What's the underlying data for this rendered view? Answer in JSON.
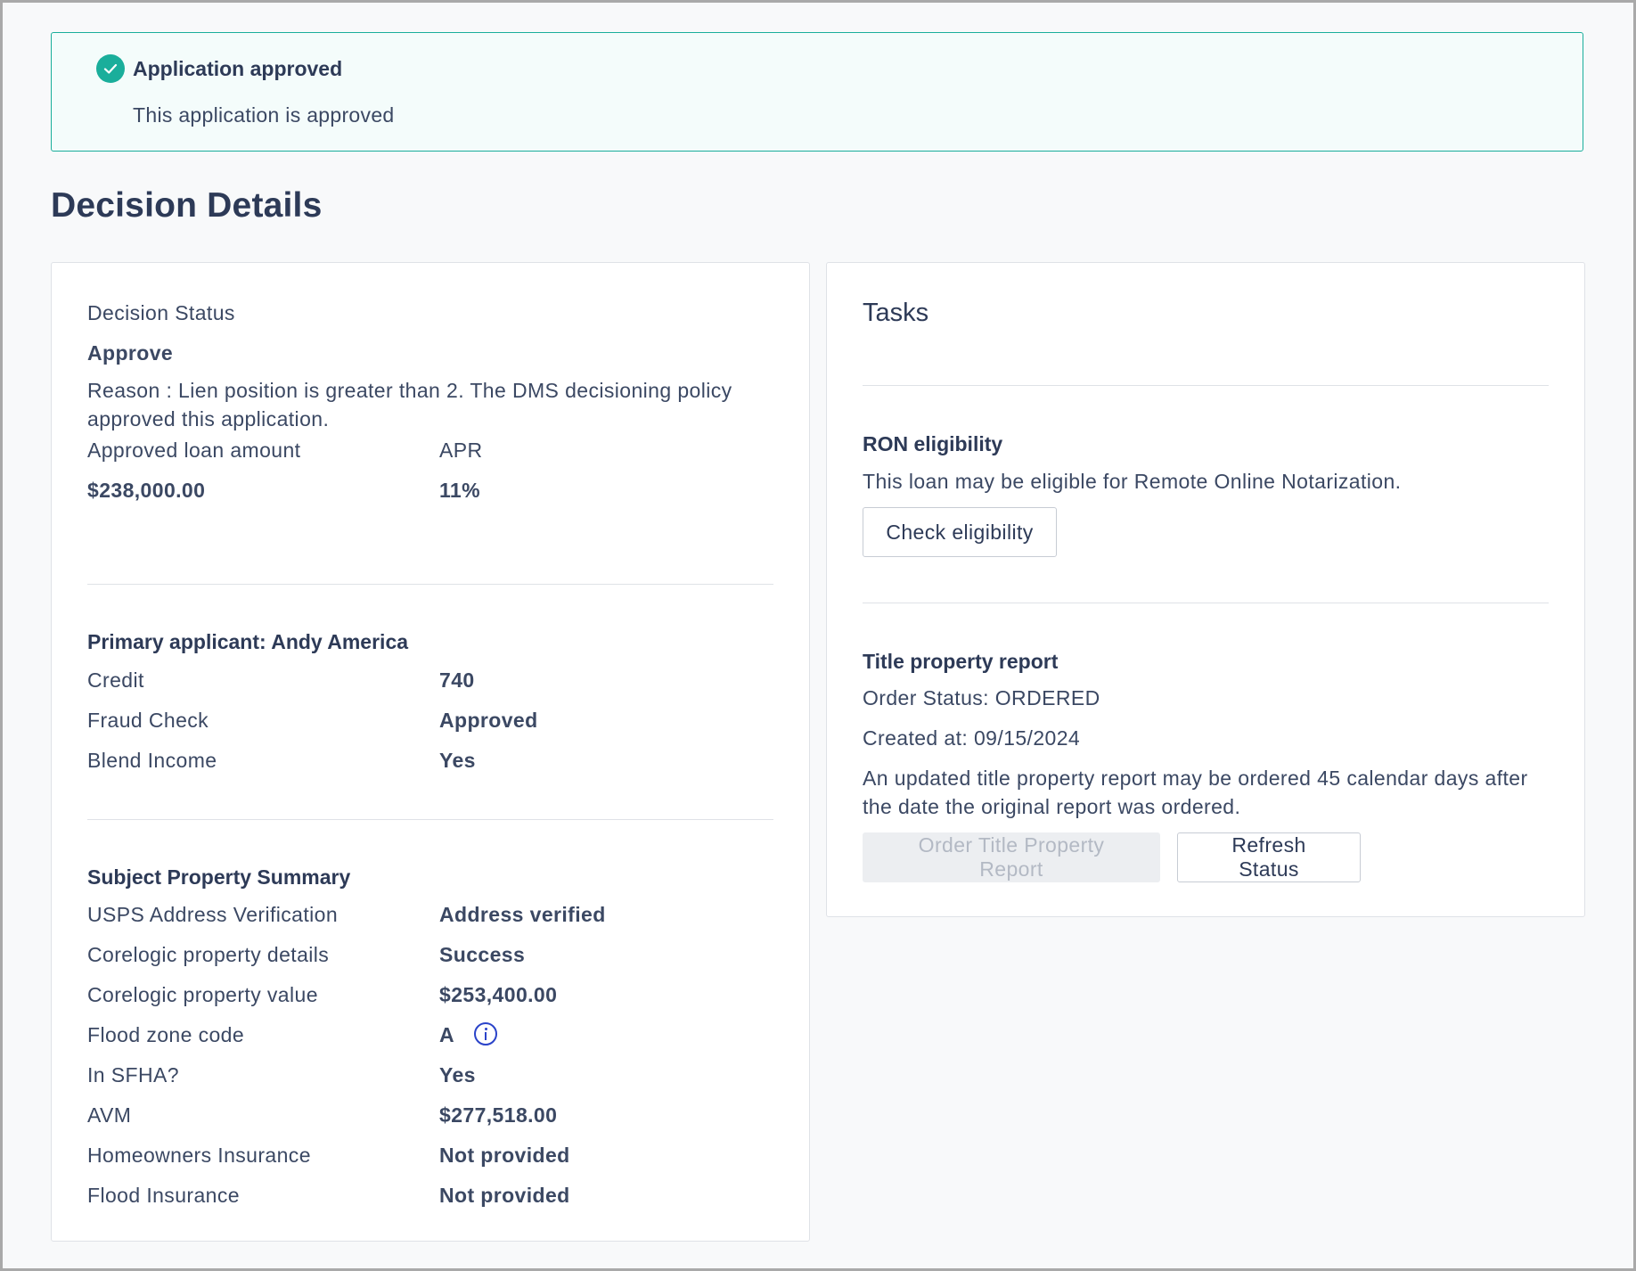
{
  "banner": {
    "title": "Application approved",
    "message": "This application is approved",
    "accent_color": "#1aae9b",
    "icon": "check-circle-icon"
  },
  "page_title": "Decision Details",
  "decision": {
    "status_label": "Decision Status",
    "status_value": "Approve",
    "reason": "Reason : Lien position is greater than 2. The DMS decisioning policy approved this application.",
    "loan_amount_label": "Approved loan amount",
    "loan_amount_value": "$238,000.00",
    "apr_label": "APR",
    "apr_value": "11%"
  },
  "applicant": {
    "title": "Primary applicant: Andy America",
    "rows": [
      {
        "label": "Credit",
        "value": "740"
      },
      {
        "label": "Fraud Check",
        "value": "Approved"
      },
      {
        "label": "Blend Income",
        "value": "Yes"
      }
    ]
  },
  "property": {
    "title": "Subject Property Summary",
    "rows": [
      {
        "label": "USPS Address Verification",
        "value": "Address verified"
      },
      {
        "label": "Corelogic property details",
        "value": "Success"
      },
      {
        "label": "Corelogic property value",
        "value": "$253,400.00"
      },
      {
        "label": "Flood zone code",
        "value": "A"
      },
      {
        "label": "In SFHA?",
        "value": "Yes"
      },
      {
        "label": "AVM",
        "value": "$277,518.00"
      },
      {
        "label": "Homeowners Insurance",
        "value": "Not provided"
      },
      {
        "label": "Flood Insurance",
        "value": "Not provided"
      }
    ],
    "info_icon": "info-icon",
    "info_icon_color": "#2a43c9"
  },
  "tasks": {
    "title": "Tasks",
    "ron": {
      "title": "RON eligibility",
      "description": "This loan may be eligible for Remote Online Notarization.",
      "button_label": "Check eligibility"
    },
    "title_report": {
      "title": "Title property report",
      "order_status": "Order Status: ORDERED",
      "created_at": "Created at: 09/15/2024",
      "note": "An updated title property report may be ordered 45 calendar days after the date the original report was ordered.",
      "order_button_label": "Order Title Property Report",
      "refresh_button_label": "Refresh Status"
    }
  }
}
